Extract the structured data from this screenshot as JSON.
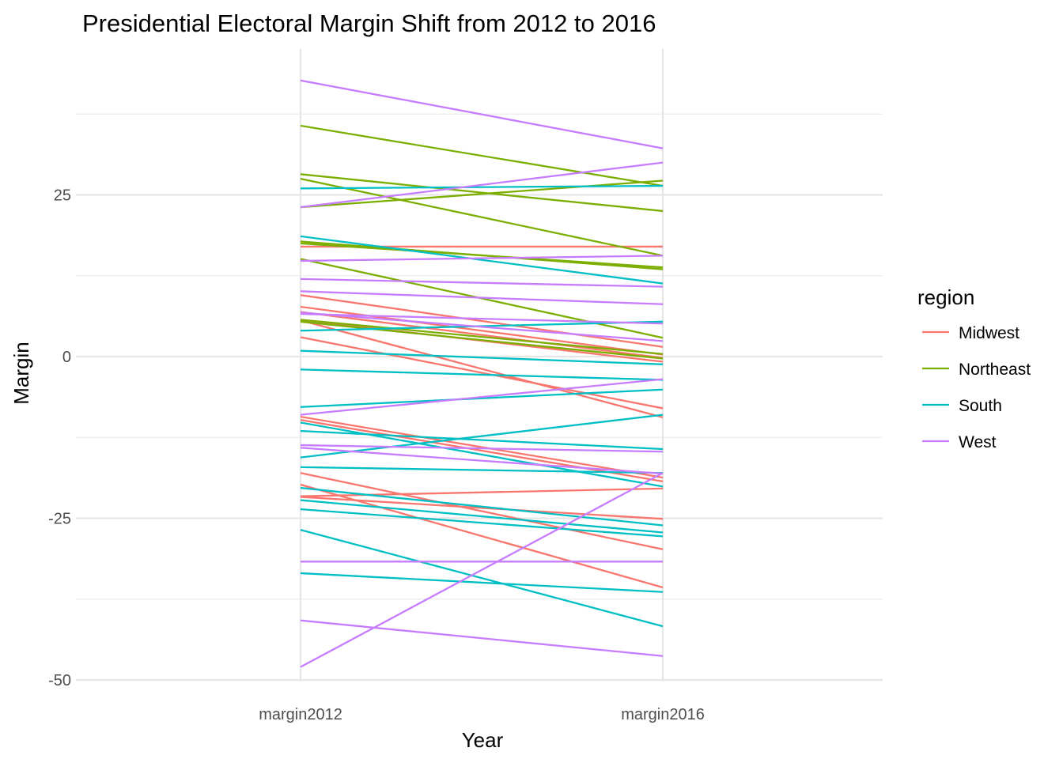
{
  "chart_data": {
    "type": "line",
    "title": "Presidential Electoral Margin Shift from 2012 to 2016",
    "xlabel": "Year",
    "ylabel": "Margin",
    "categories": [
      "margin2012",
      "margin2016"
    ],
    "y_ticks": [
      {
        "value": 25,
        "label": "25"
      },
      {
        "value": 0,
        "label": "0"
      },
      {
        "value": -25,
        "label": "-25"
      },
      {
        "value": -50,
        "label": "-50"
      }
    ],
    "ylim": [
      -52,
      50
    ],
    "grid": true,
    "legend": {
      "title": "region",
      "placement": "right",
      "entries": [
        "Midwest",
        "Northeast",
        "South",
        "West"
      ]
    },
    "colors": {
      "Midwest": "#F8766D",
      "Northeast": "#7CAE00",
      "South": "#00BFC4",
      "West": "#C77CFF"
    },
    "series": [
      {
        "region": "Midwest",
        "values": [
          17,
          17
        ]
      },
      {
        "region": "Midwest",
        "values": [
          9.5,
          1.5
        ]
      },
      {
        "region": "Midwest",
        "values": [
          7.7,
          0.3
        ]
      },
      {
        "region": "Midwest",
        "values": [
          6.9,
          -0.2
        ]
      },
      {
        "region": "Midwest",
        "values": [
          5.7,
          -0.8
        ]
      },
      {
        "region": "Midwest",
        "values": [
          5.6,
          -9.4
        ]
      },
      {
        "region": "Midwest",
        "values": [
          3,
          -8
        ]
      },
      {
        "region": "Midwest",
        "values": [
          -9.3,
          -18.7
        ]
      },
      {
        "region": "Midwest",
        "values": [
          -9.8,
          -19.3
        ]
      },
      {
        "region": "Midwest",
        "values": [
          -21.6,
          -20.4
        ]
      },
      {
        "region": "Midwest",
        "values": [
          -18,
          -29.8
        ]
      },
      {
        "region": "Midwest",
        "values": [
          -19.8,
          -35.7
        ]
      },
      {
        "region": "Midwest",
        "values": [
          -21.7,
          -25.1
        ]
      },
      {
        "region": "Northeast",
        "values": [
          35.7,
          26.4
        ]
      },
      {
        "region": "Northeast",
        "values": [
          28.2,
          22.5
        ]
      },
      {
        "region": "Northeast",
        "values": [
          27.5,
          15.6
        ]
      },
      {
        "region": "Northeast",
        "values": [
          23.1,
          27.2
        ]
      },
      {
        "region": "Northeast",
        "values": [
          17.8,
          13.5
        ]
      },
      {
        "region": "Northeast",
        "values": [
          17.5,
          13.8
        ]
      },
      {
        "region": "Northeast",
        "values": [
          15.1,
          2.9
        ]
      },
      {
        "region": "Northeast",
        "values": [
          5.7,
          0.4
        ]
      },
      {
        "region": "Northeast",
        "values": [
          5.4,
          -0.3
        ]
      },
      {
        "region": "South",
        "values": [
          26,
          26.4
        ]
      },
      {
        "region": "South",
        "values": [
          18.6,
          11.3
        ]
      },
      {
        "region": "South",
        "values": [
          4,
          5.4
        ]
      },
      {
        "region": "South",
        "values": [
          0.9,
          -1.2
        ]
      },
      {
        "region": "South",
        "values": [
          -2,
          -3.6
        ]
      },
      {
        "region": "South",
        "values": [
          -7.8,
          -5.1
        ]
      },
      {
        "region": "South",
        "values": [
          -11.5,
          -14.3
        ]
      },
      {
        "region": "South",
        "values": [
          -15.6,
          -9
        ]
      },
      {
        "region": "South",
        "values": [
          -17.1,
          -18
        ]
      },
      {
        "region": "South",
        "values": [
          -20.3,
          -26.1
        ]
      },
      {
        "region": "South",
        "values": [
          -22.2,
          -27.2
        ]
      },
      {
        "region": "South",
        "values": [
          -23.6,
          -27.8
        ]
      },
      {
        "region": "South",
        "values": [
          -26.8,
          -41.7
        ]
      },
      {
        "region": "South",
        "values": [
          -33.5,
          -36.4
        ]
      },
      {
        "region": "South",
        "values": [
          -10.2,
          -20.1
        ]
      },
      {
        "region": "West",
        "values": [
          42.7,
          32.2
        ]
      },
      {
        "region": "West",
        "values": [
          23.1,
          30
        ]
      },
      {
        "region": "West",
        "values": [
          14.8,
          15.6
        ]
      },
      {
        "region": "West",
        "values": [
          12,
          10.8
        ]
      },
      {
        "region": "West",
        "values": [
          10.1,
          8.1
        ]
      },
      {
        "region": "West",
        "values": [
          6.8,
          2.4
        ]
      },
      {
        "region": "West",
        "values": [
          6.6,
          5.1
        ]
      },
      {
        "region": "West",
        "values": [
          -9,
          -3.5
        ]
      },
      {
        "region": "West",
        "values": [
          -13.7,
          -14.7
        ]
      },
      {
        "region": "West",
        "values": [
          -14.1,
          -18.1
        ]
      },
      {
        "region": "West",
        "values": [
          -31.7,
          -31.7
        ]
      },
      {
        "region": "West",
        "values": [
          -40.8,
          -46.3
        ]
      },
      {
        "region": "West",
        "values": [
          -48,
          -18
        ]
      }
    ]
  }
}
